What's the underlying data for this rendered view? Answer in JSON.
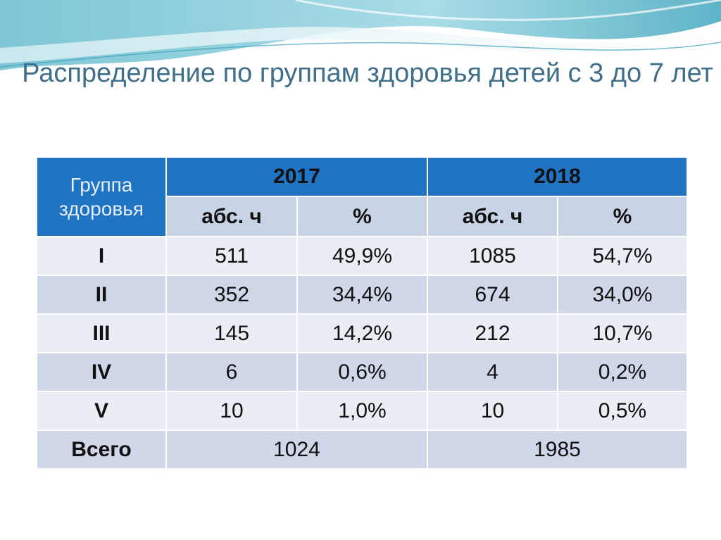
{
  "slide": {
    "title": "Распределение по группам здоровья  детей с 3 до 7 лет"
  },
  "table": {
    "corner_header": "Группа здоровья",
    "years": [
      "2017",
      "2018"
    ],
    "sub_headers": [
      "абс. ч",
      "%",
      "абс. ч",
      "%"
    ],
    "rows": [
      {
        "group": "I",
        "abs_2017": "511",
        "pct_2017": "49,9%",
        "abs_2018": "1085",
        "pct_2018": "54,7%"
      },
      {
        "group": "II",
        "abs_2017": "352",
        "pct_2017": "34,4%",
        "abs_2018": "674",
        "pct_2018": "34,0%"
      },
      {
        "group": "III",
        "abs_2017": "145",
        "pct_2017": "14,2%",
        "abs_2018": "212",
        "pct_2018": "10,7%"
      },
      {
        "group": "IV",
        "abs_2017": "6",
        "pct_2017": "0,6%",
        "abs_2018": "4",
        "pct_2018": "0,2%"
      },
      {
        "group": "V",
        "abs_2017": "10",
        "pct_2017": "1,0%",
        "abs_2018": "10",
        "pct_2018": "0,5%"
      }
    ],
    "total": {
      "label": "Всего",
      "total_2017": "1024",
      "total_2018": "1985"
    }
  },
  "colors": {
    "header_blue": "#1f74c4",
    "subheader": "#c9d3e6",
    "row_light": "#e9edf4",
    "row_dark": "#cfd7e8",
    "title_text": "#3f6f8a"
  }
}
